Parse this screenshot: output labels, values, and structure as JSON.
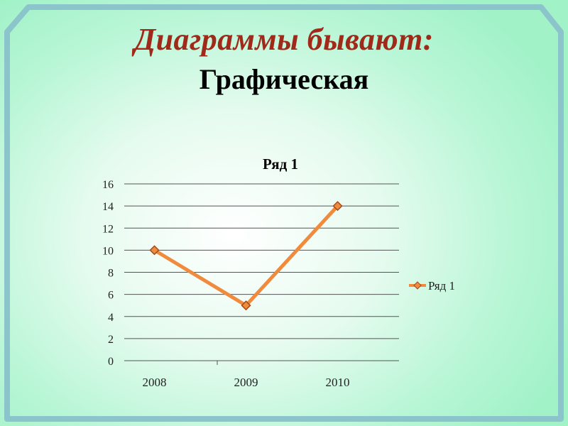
{
  "slide": {
    "heading": "Диаграммы бывают:",
    "subheading": "Графическая"
  },
  "colors": {
    "heading": "#a02a1a",
    "series": "#f08a3c",
    "frame": "#8cc4cc",
    "background": "#a2f2c8"
  },
  "chart_data": {
    "type": "line",
    "title": "Ряд 1",
    "categories": [
      "2008",
      "2009",
      "2010"
    ],
    "series": [
      {
        "name": "Ряд 1",
        "values": [
          10,
          5,
          14
        ],
        "marker": "diamond"
      }
    ],
    "ylim": [
      0,
      16
    ],
    "yticks": [
      0,
      2,
      4,
      6,
      8,
      10,
      12,
      14,
      16
    ],
    "grid": true,
    "legend": "right"
  }
}
